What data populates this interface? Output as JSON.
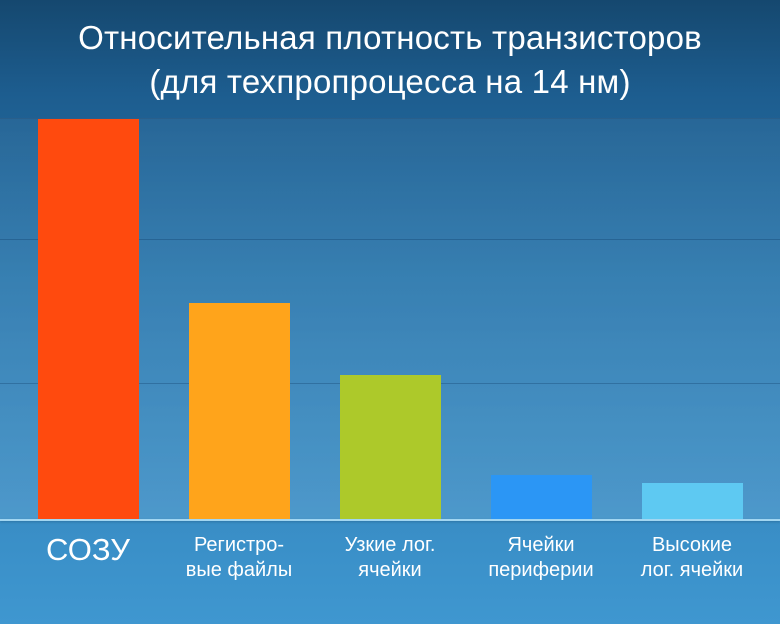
{
  "title": {
    "line1": "Относительная плотность транзисторов",
    "line2": "(для техпропроцесса на 14 нм)"
  },
  "chart_data": {
    "type": "bar",
    "title": "Относительная плотность транзисторов (для техпропроцесса на 14 нм)",
    "categories": [
      "СОЗУ",
      "Регистро-\nвые файлы",
      "Узкие лог.\nячейки",
      "Ячейки\nпериферии",
      "Высокие\nлог. ячейки"
    ],
    "values": [
      100,
      54,
      36,
      11,
      9
    ],
    "colors": [
      "#ff4a0e",
      "#ffa41b",
      "#adc92a",
      "#2b96f5",
      "#5ec9f2"
    ],
    "ylim": [
      0,
      100
    ],
    "xlabel": "",
    "ylabel": "",
    "grid": true,
    "legend": "none"
  },
  "colors": {
    "background_top": "#15486f",
    "background_bottom": "#3f97d0",
    "baseline": "#a2d6f1",
    "gridline": "rgba(8,48,88,0.28)",
    "title_text": "#ffffff"
  }
}
